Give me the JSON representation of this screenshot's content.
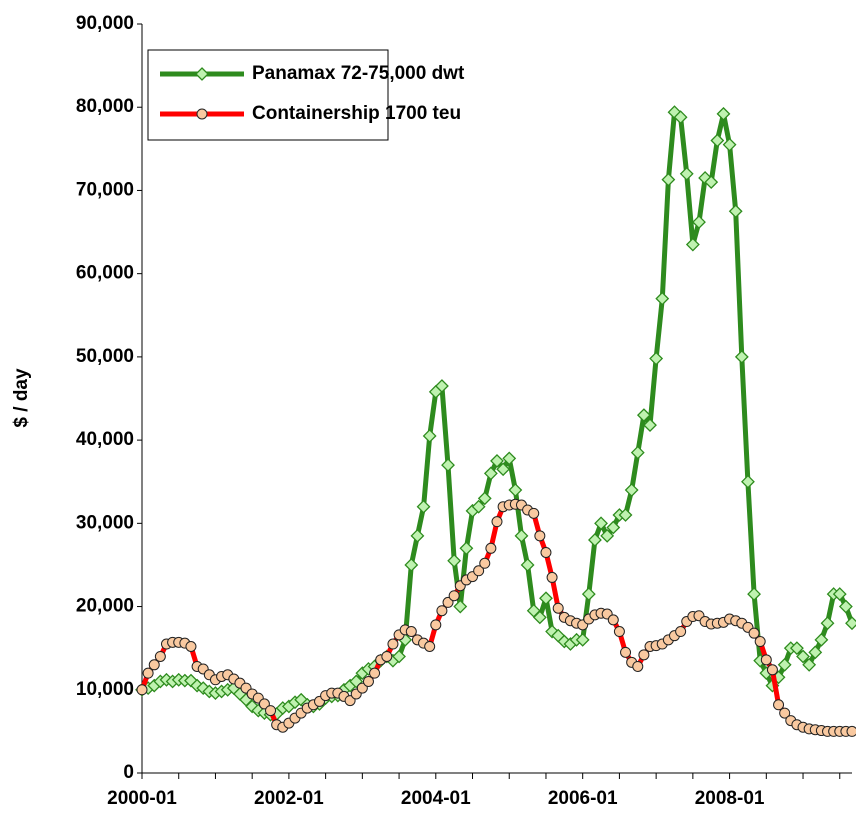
{
  "chart_data": {
    "type": "line",
    "ylabel": "$ / day",
    "categories": [
      "2000-01",
      null,
      null,
      null,
      null,
      null,
      null,
      null,
      null,
      null,
      null,
      null,
      null,
      null,
      null,
      null,
      null,
      null,
      null,
      null,
      null,
      null,
      null,
      null,
      "2002-01",
      null,
      null,
      null,
      null,
      null,
      null,
      null,
      null,
      null,
      null,
      null,
      null,
      null,
      null,
      null,
      null,
      null,
      null,
      null,
      null,
      null,
      null,
      null,
      "2004-01",
      null,
      null,
      null,
      null,
      null,
      null,
      null,
      null,
      null,
      null,
      null,
      null,
      null,
      null,
      null,
      null,
      null,
      null,
      null,
      null,
      null,
      null,
      null,
      "2006-01",
      null,
      null,
      null,
      null,
      null,
      null,
      null,
      null,
      null,
      null,
      null,
      null,
      null,
      null,
      null,
      null,
      null,
      null,
      null,
      null,
      null,
      null,
      null,
      "2008-01",
      null,
      null,
      null,
      null,
      null,
      null,
      null,
      null,
      null,
      null,
      null,
      null,
      null,
      null,
      null,
      null,
      null,
      null,
      null,
      null
    ],
    "series": [
      {
        "name": "Panamax 72-75,000 dwt",
        "color": "#2e8b1e",
        "marker": "diamond",
        "marker_fill": "#bff2b0",
        "values": [
          10000,
          10200,
          10500,
          11000,
          11200,
          11000,
          11200,
          11100,
          11100,
          10500,
          10200,
          9800,
          9600,
          9800,
          10000,
          10200,
          9500,
          8800,
          8000,
          7500,
          7200,
          7000,
          7100,
          7800,
          8000,
          8500,
          8800,
          8200,
          8000,
          8300,
          9000,
          9200,
          9300,
          10000,
          10500,
          11000,
          12000,
          12500,
          12800,
          13500,
          14000,
          13500,
          14000,
          16000,
          25000,
          28500,
          32000,
          40500,
          45800,
          46500,
          37000,
          25500,
          20000,
          27000,
          31500,
          32000,
          33000,
          36000,
          37500,
          36500,
          37800,
          34000,
          28500,
          25000,
          19500,
          18700,
          21000,
          17000,
          16500,
          15800,
          15500,
          16000,
          16000,
          21500,
          28000,
          30000,
          28500,
          29500,
          31000,
          31000,
          34000,
          38500,
          43000,
          41800,
          49800,
          57000,
          71300,
          79400,
          78800,
          72000,
          63500,
          66200,
          71500,
          71000,
          76000,
          79200,
          75500,
          67500,
          50000,
          35000,
          21500,
          13500,
          12000,
          10500,
          11500,
          13000,
          15000,
          15000,
          14000,
          13000,
          14500,
          16000,
          18000,
          21500,
          21500,
          20000,
          18000
        ]
      },
      {
        "name": "Containership 1700 teu",
        "color": "#ff0000",
        "marker": "circle",
        "marker_fill": "#f9c9a0",
        "values": [
          10000,
          12000,
          13000,
          14000,
          15500,
          15700,
          15700,
          15600,
          15200,
          12800,
          12500,
          11800,
          11200,
          11600,
          11800,
          11300,
          10800,
          10200,
          9500,
          9000,
          8300,
          7500,
          5800,
          5500,
          6000,
          6600,
          7200,
          7800,
          8200,
          8600,
          9300,
          9600,
          9600,
          9200,
          8700,
          9500,
          10200,
          11000,
          12000,
          13600,
          14000,
          15500,
          16600,
          17200,
          17000,
          16000,
          15600,
          15200,
          17800,
          19500,
          20500,
          21300,
          22500,
          23200,
          23600,
          24300,
          25200,
          27000,
          30200,
          32000,
          32200,
          32300,
          32200,
          31600,
          31200,
          28500,
          26500,
          23500,
          19800,
          18700,
          18300,
          18000,
          17800,
          18500,
          19000,
          19200,
          19100,
          18400,
          17000,
          14500,
          13300,
          12800,
          14200,
          15200,
          15300,
          15500,
          16000,
          16500,
          17000,
          18200,
          18800,
          18900,
          18200,
          17900,
          18000,
          18100,
          18500,
          18300,
          18000,
          17500,
          16800,
          15800,
          13600,
          12400,
          8200,
          7200,
          6300,
          5800,
          5500,
          5300,
          5200,
          5100,
          5000,
          5000,
          5000,
          5000,
          5000
        ]
      }
    ],
    "ylim": [
      0,
      90000
    ],
    "yticks": [
      0,
      {
        "value": 10000,
        "label": "10,000"
      },
      {
        "value": 20000,
        "label": "20,000"
      },
      {
        "value": 30000,
        "label": "30,000"
      },
      {
        "value": 40000,
        "label": "40,000"
      },
      {
        "value": 50000,
        "label": "50,000"
      },
      {
        "value": 60000,
        "label": "60,000"
      },
      {
        "value": 70000,
        "label": "70,000"
      },
      {
        "value": 80000,
        "label": "80,000"
      },
      {
        "value": 90000,
        "label": "90,000"
      }
    ],
    "legend": "upper left"
  }
}
